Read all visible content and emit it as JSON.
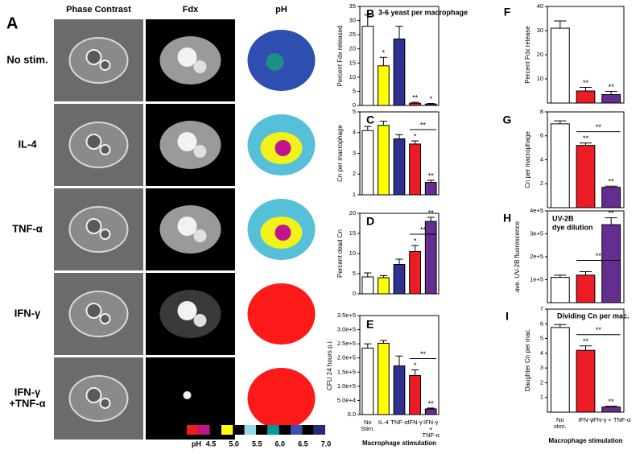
{
  "panel_a": {
    "label": "A",
    "columns": [
      "Phase Contrast",
      "Fdx",
      "pH"
    ],
    "rows": [
      [
        "No stim."
      ],
      [
        "IL-4"
      ],
      [
        "TNF-α"
      ],
      [
        "IFN-γ"
      ],
      [
        "IFN-γ",
        "+TNF-α"
      ]
    ],
    "ph_scale": {
      "label": "pH",
      "ticks": [
        4.5,
        {
          "value": 5,
          "label": "5.0"
        },
        5.5,
        {
          "value": 6,
          "label": "6.0"
        },
        6.5,
        {
          "value": 7,
          "label": "7.0"
        }
      ]
    }
  },
  "chart_data": [
    {
      "type": "bar",
      "label": "B",
      "annotation": [
        "3-6 yeast per macrophage"
      ],
      "ylabel": "Percent Fdx released",
      "ylim": [
        0,
        35
      ],
      "yticks": [
        0,
        5,
        10,
        15,
        20,
        25,
        30,
        35
      ],
      "values": [
        28,
        14,
        23.5,
        0.8,
        0.5
      ],
      "errors": [
        4,
        3,
        4.5,
        0.3,
        0.2
      ],
      "colors": [
        "#ffffff",
        "#ffff00",
        "#2e3192",
        "#ed1c24",
        "#662d91"
      ],
      "significance": [
        null,
        "*",
        null,
        "**",
        "*"
      ]
    },
    {
      "type": "bar",
      "label": "C",
      "ylabel": "Cn per macrophage",
      "ylim": [
        1,
        5
      ],
      "yticks": [
        1,
        2,
        3,
        4,
        5
      ],
      "values": [
        4.1,
        4.35,
        3.7,
        3.45,
        1.6
      ],
      "errors": [
        0.2,
        0.2,
        0.2,
        0.15,
        0.1
      ],
      "colors": [
        "#ffffff",
        "#ffff00",
        "#2e3192",
        "#ed1c24",
        "#662d91"
      ],
      "significance": [
        null,
        null,
        null,
        "*",
        "**"
      ],
      "comparisons": [
        {
          "from": 3,
          "to": 4,
          "label": "**"
        }
      ]
    },
    {
      "type": "bar",
      "label": "D",
      "ylabel": "Percent dead Cn",
      "ylim": [
        0,
        20
      ],
      "yticks": [
        0,
        5,
        10,
        15,
        20
      ],
      "values": [
        4.2,
        4,
        7.3,
        10.5,
        18
      ],
      "errors": [
        1,
        0.5,
        1.3,
        1.5,
        1
      ],
      "colors": [
        "#ffffff",
        "#ffff00",
        "#2e3192",
        "#ed1c24",
        "#662d91"
      ],
      "significance": [
        null,
        null,
        null,
        "*",
        "**"
      ],
      "comparisons": [
        {
          "from": 3,
          "to": 4,
          "label": "**"
        }
      ]
    },
    {
      "type": "bar",
      "label": "E",
      "ylabel": "CFU 24 hours p.i.",
      "xlabel": "Macrophage stimulation",
      "categories": [
        [
          "No",
          "Stim."
        ],
        [
          "IL-4"
        ],
        [
          "TNF-α"
        ],
        [
          "IFN-γ"
        ],
        [
          "IFN-γ",
          "+",
          "TNF-α"
        ]
      ],
      "ylim": [
        0,
        350000
      ],
      "yticks": [
        {
          "value": 0,
          "label": "0.0"
        },
        {
          "value": 50000,
          "label": "5.0e+4"
        },
        {
          "value": 100000,
          "label": "1.0e+5"
        },
        {
          "value": 150000,
          "label": "1.5e+5"
        },
        {
          "value": 200000,
          "label": "2.0e+5"
        },
        {
          "value": 250000,
          "label": "2.5e+5"
        },
        {
          "value": 300000,
          "label": "3.0e+5"
        },
        {
          "value": 350000,
          "label": "3.5e+5"
        }
      ],
      "values": [
        235000,
        252000,
        172000,
        138000,
        20000
      ],
      "errors": [
        15000,
        10000,
        35000,
        20000,
        3000
      ],
      "colors": [
        "#ffffff",
        "#ffff00",
        "#2e3192",
        "#ed1c24",
        "#662d91"
      ],
      "significance": [
        null,
        null,
        null,
        "*",
        "**"
      ],
      "comparisons": [
        {
          "from": 3,
          "to": 4,
          "label": "**"
        }
      ]
    },
    {
      "type": "bar",
      "label": "F",
      "ylabel": "Percent Fdx release",
      "ylim": [
        0,
        40
      ],
      "yticks": [
        10,
        20,
        30,
        40
      ],
      "values": [
        31,
        5,
        3.5
      ],
      "errors": [
        3,
        1.5,
        1.3
      ],
      "colors": [
        "#ffffff",
        "#ed1c24",
        "#662d91"
      ],
      "significance": [
        null,
        "**",
        "**"
      ]
    },
    {
      "type": "bar",
      "label": "G",
      "ylabel": "Cn per macrophage",
      "ylim": [
        0,
        8
      ],
      "yticks": [
        2,
        4,
        6,
        8
      ],
      "values": [
        7,
        5.2,
        1.7
      ],
      "errors": [
        0.25,
        0.2,
        0.1
      ],
      "colors": [
        "#ffffff",
        "#ed1c24",
        "#662d91"
      ],
      "significance": [
        null,
        "**",
        "**"
      ],
      "comparisons": [
        {
          "from": 1,
          "to": 2,
          "label": "**"
        }
      ]
    },
    {
      "type": "bar",
      "label": "H",
      "annotation": [
        "UV-2B",
        "dye dilution"
      ],
      "ylabel": "ave. UV-2B fluorescence",
      "ylim": [
        0,
        400000
      ],
      "yticks": [
        {
          "value": 100000,
          "label": "1e+5"
        },
        {
          "value": 200000,
          "label": "2e+5"
        },
        {
          "value": 300000,
          "label": "3e+5"
        },
        {
          "value": 400000,
          "label": "4e+5"
        }
      ],
      "values": [
        110000,
        120000,
        340000
      ],
      "errors": [
        10000,
        15000,
        30000
      ],
      "colors": [
        "#ffffff",
        "#ed1c24",
        "#662d91"
      ],
      "significance": [
        null,
        null,
        "**"
      ],
      "comparisons": [
        {
          "from": 1,
          "to": 2,
          "label": "**"
        }
      ]
    },
    {
      "type": "bar",
      "label": "I",
      "annotation": [
        "Dividing Cn per mac."
      ],
      "ylabel": "Daughter Cn per mac",
      "xlabel": "Macrophage stimulation",
      "categories": [
        [
          "No",
          "stim."
        ],
        [
          "IFN-γ"
        ],
        [
          "IFN-γ + TNF-α"
        ]
      ],
      "ylim": [
        0,
        7
      ],
      "yticks": [
        1,
        2,
        3,
        4,
        5,
        6,
        7
      ],
      "values": [
        5.75,
        4.2,
        0.35
      ],
      "errors": [
        0.2,
        0.3,
        0.05
      ],
      "colors": [
        "#ffffff",
        "#ed1c24",
        "#662d91"
      ],
      "significance": [
        null,
        "**",
        "**"
      ],
      "comparisons": [
        {
          "from": 1,
          "to": 2,
          "label": "**"
        }
      ]
    }
  ]
}
